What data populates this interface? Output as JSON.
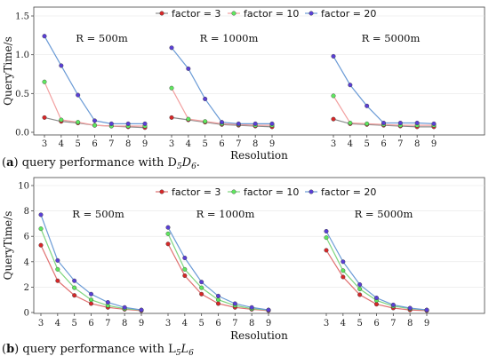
{
  "chart_data": [
    {
      "type": "line",
      "caption": {
        "letter": "a",
        "text": " query performance with D",
        "sub1": "5",
        "mid": "D",
        "sub2": "6",
        "end": "."
      },
      "xlabel": "Resolution",
      "ylabel": "QueryTime/s",
      "ylim": [
        0,
        1.5
      ],
      "yticks": [
        "0.0",
        "0.5",
        "1.0",
        "1.5"
      ],
      "x": [
        3,
        4,
        5,
        6,
        7,
        8,
        9
      ],
      "legend": [
        "factor = 3",
        "factor = 10",
        "factor = 20"
      ],
      "colors": [
        "#d62728",
        "#5fe85f",
        "#5a3fd6"
      ],
      "line_colors": [
        "#8c8c8c",
        "#f2a0a0",
        "#6b9bd6"
      ],
      "panels": [
        {
          "label": "R = 500m",
          "series": [
            {
              "name": "factor = 3",
              "values": [
                0.19,
                0.14,
                0.12,
                0.09,
                0.08,
                0.07,
                0.06
              ]
            },
            {
              "name": "factor = 10",
              "values": [
                0.65,
                0.16,
                0.13,
                0.09,
                0.08,
                0.08,
                0.08
              ]
            },
            {
              "name": "factor = 20",
              "values": [
                1.24,
                0.86,
                0.48,
                0.15,
                0.11,
                0.11,
                0.11
              ]
            }
          ]
        },
        {
          "label": "R = 1000m",
          "series": [
            {
              "name": "factor = 3",
              "values": [
                0.19,
                0.16,
                0.13,
                0.1,
                0.09,
                0.08,
                0.07
              ]
            },
            {
              "name": "factor = 10",
              "values": [
                0.57,
                0.17,
                0.14,
                0.11,
                0.1,
                0.09,
                0.09
              ]
            },
            {
              "name": "factor = 20",
              "values": [
                1.09,
                0.82,
                0.43,
                0.13,
                0.11,
                0.11,
                0.11
              ]
            }
          ]
        },
        {
          "label": "R = 5000m",
          "series": [
            {
              "name": "factor = 3",
              "values": [
                0.17,
                0.11,
                0.1,
                0.09,
                0.08,
                0.07,
                0.07
              ]
            },
            {
              "name": "factor = 10",
              "values": [
                0.47,
                0.12,
                0.11,
                0.1,
                0.09,
                0.09,
                0.09
              ]
            },
            {
              "name": "factor = 20",
              "values": [
                0.98,
                0.61,
                0.34,
                0.12,
                0.12,
                0.12,
                0.11
              ]
            }
          ]
        }
      ]
    },
    {
      "type": "line",
      "caption": {
        "letter": "b",
        "text": " query performance with L",
        "sub1": "5",
        "mid": "L",
        "sub2": "6",
        "end": ""
      },
      "xlabel": "Resolution",
      "ylabel": "QueryTime/s",
      "ylim": [
        0,
        10
      ],
      "yticks": [
        "0",
        "2",
        "4",
        "6",
        "8",
        "10"
      ],
      "x": [
        3,
        4,
        5,
        6,
        7,
        8,
        9
      ],
      "legend": [
        "factor = 3",
        "factor = 10",
        "factor = 20"
      ],
      "colors": [
        "#d62728",
        "#5fe85f",
        "#5a3fd6"
      ],
      "line_colors": [
        "#e07070",
        "#7fd67f",
        "#6b9bd6"
      ],
      "panels": [
        {
          "label": "R = 500m",
          "series": [
            {
              "name": "factor = 3",
              "values": [
                5.3,
                2.5,
                1.35,
                0.7,
                0.4,
                0.25,
                0.15
              ]
            },
            {
              "name": "factor = 10",
              "values": [
                6.6,
                3.4,
                1.95,
                1.0,
                0.55,
                0.3,
                0.2
              ]
            },
            {
              "name": "factor = 20",
              "values": [
                7.7,
                4.1,
                2.5,
                1.45,
                0.8,
                0.4,
                0.2
              ]
            }
          ]
        },
        {
          "label": "R = 1000m",
          "series": [
            {
              "name": "factor = 3",
              "values": [
                5.4,
                2.9,
                1.45,
                0.7,
                0.4,
                0.25,
                0.15
              ]
            },
            {
              "name": "factor = 10",
              "values": [
                6.2,
                3.4,
                1.95,
                1.0,
                0.55,
                0.3,
                0.2
              ]
            },
            {
              "name": "factor = 20",
              "values": [
                6.7,
                4.3,
                2.4,
                1.3,
                0.7,
                0.4,
                0.2
              ]
            }
          ]
        },
        {
          "label": "R = 5000m",
          "series": [
            {
              "name": "factor = 3",
              "values": [
                4.9,
                2.8,
                1.4,
                0.65,
                0.35,
                0.2,
                0.15
              ]
            },
            {
              "name": "factor = 10",
              "values": [
                5.9,
                3.3,
                1.85,
                0.95,
                0.5,
                0.3,
                0.2
              ]
            },
            {
              "name": "factor = 20",
              "values": [
                6.4,
                4.0,
                2.2,
                1.15,
                0.6,
                0.35,
                0.2
              ]
            }
          ]
        }
      ]
    }
  ]
}
